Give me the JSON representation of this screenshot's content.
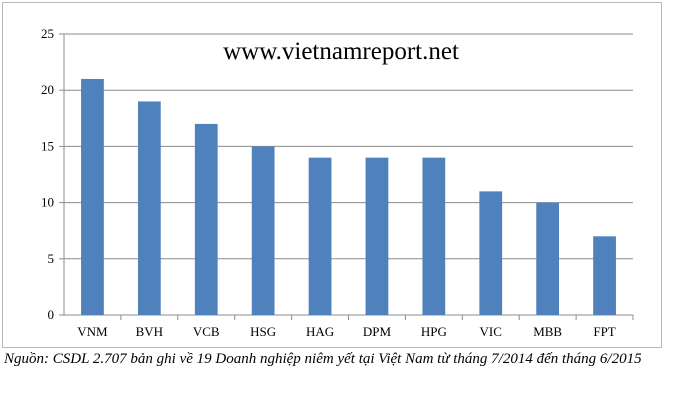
{
  "chart_data": {
    "type": "bar",
    "categories": [
      "VNM",
      "BVH",
      "VCB",
      "HSG",
      "HAG",
      "DPM",
      "HPG",
      "VIC",
      "MBB",
      "FPT"
    ],
    "values": [
      21,
      19,
      17,
      15,
      14,
      14,
      14,
      11,
      10,
      7
    ],
    "yticks": [
      0,
      5,
      10,
      15,
      20,
      25
    ],
    "ylim": [
      0,
      25
    ],
    "grid": true,
    "legend": "none",
    "bar_color": "#4f81bd",
    "annotation": "www.vietnamreport.net"
  },
  "source_note": "Nguồn: CSDL 2.707 bản ghi về 19 Doanh nghiệp niêm yết tại Việt Nam từ tháng 7/2014 đến tháng 6/2015"
}
